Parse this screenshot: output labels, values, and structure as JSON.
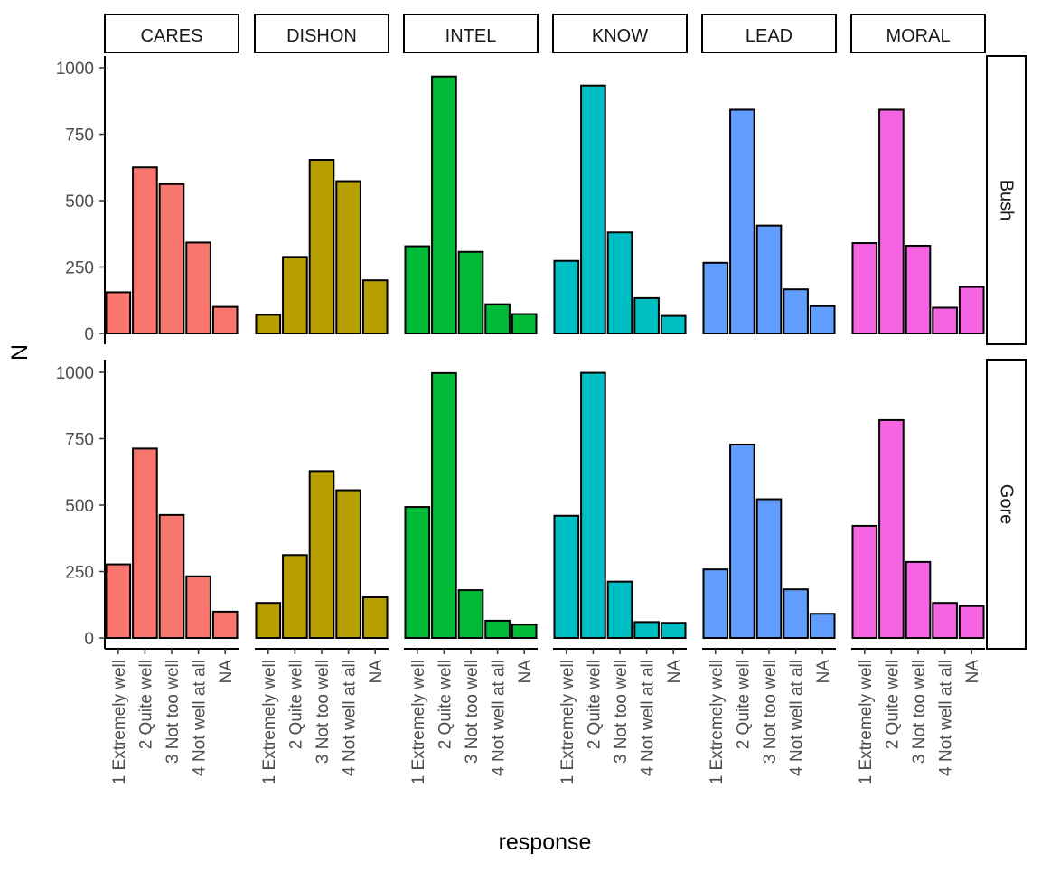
{
  "chart_data": {
    "type": "bar",
    "xlabel": "response",
    "ylabel": "N",
    "ylim": [
      0,
      1000
    ],
    "yticks": [
      0,
      250,
      500,
      750,
      1000
    ],
    "categories": [
      "1 Extremely well",
      "2 Quite well",
      "3 Not too well",
      "4 Not well at all",
      "NA"
    ],
    "panel_columns": [
      {
        "name": "CARES",
        "color": "#F8766D"
      },
      {
        "name": "DISHON",
        "color": "#B79F00"
      },
      {
        "name": "INTEL",
        "color": "#00BA38"
      },
      {
        "name": "KNOW",
        "color": "#00BFC4"
      },
      {
        "name": "LEAD",
        "color": "#619CFF"
      },
      {
        "name": "MORAL",
        "color": "#F564E3"
      }
    ],
    "panel_rows": [
      {
        "name": "Bush",
        "values": {
          "CARES": [
            155,
            625,
            562,
            342,
            100
          ],
          "DISHON": [
            70,
            288,
            653,
            573,
            200
          ],
          "INTEL": [
            328,
            967,
            307,
            110,
            73
          ],
          "KNOW": [
            273,
            933,
            380,
            133,
            66
          ],
          "LEAD": [
            266,
            842,
            406,
            166,
            103
          ],
          "MORAL": [
            340,
            842,
            330,
            97,
            175
          ]
        }
      },
      {
        "name": "Gore",
        "values": {
          "CARES": [
            277,
            713,
            463,
            232,
            99
          ],
          "DISHON": [
            132,
            312,
            628,
            556,
            153
          ],
          "INTEL": [
            493,
            997,
            180,
            65,
            50
          ],
          "KNOW": [
            460,
            998,
            212,
            60,
            57
          ],
          "LEAD": [
            258,
            728,
            522,
            183,
            91
          ],
          "MORAL": [
            422,
            820,
            286,
            132,
            120
          ]
        }
      }
    ],
    "grid": false,
    "legend": "none"
  }
}
